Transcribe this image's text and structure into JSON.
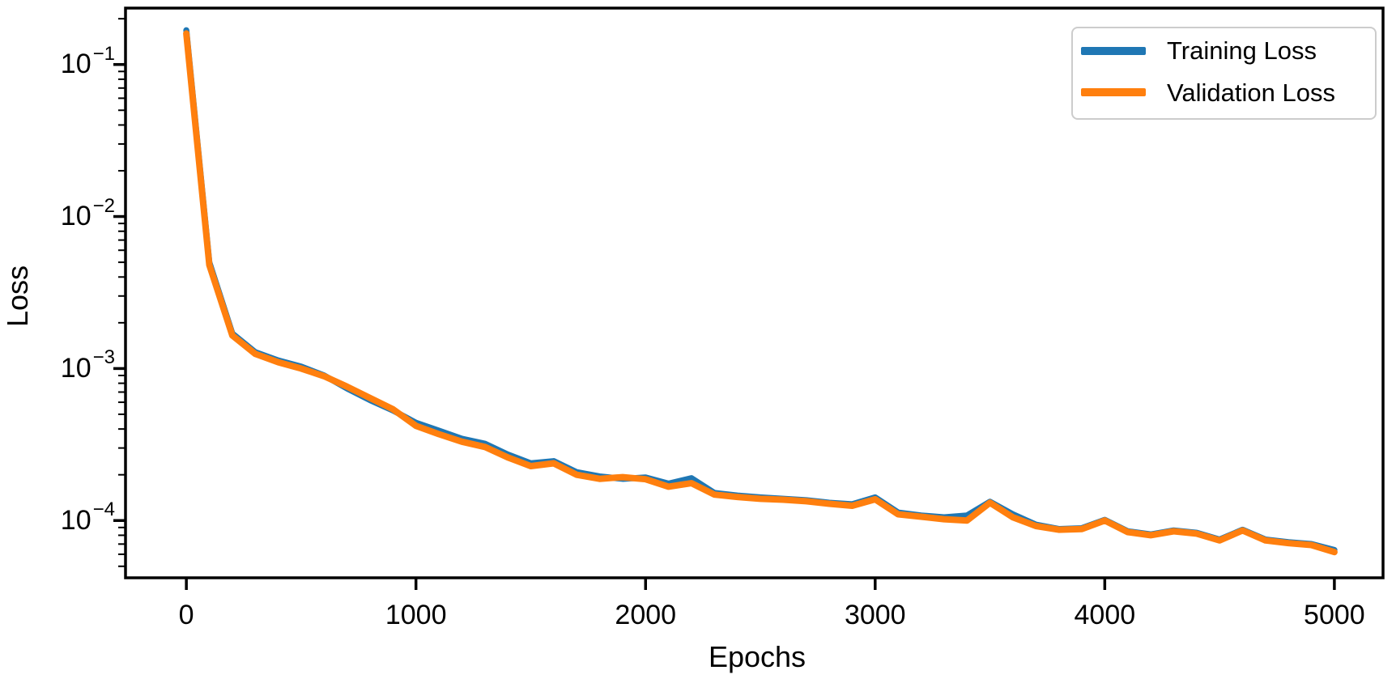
{
  "chart_data": {
    "type": "line",
    "title": "",
    "xlabel": "Epochs",
    "ylabel": "Loss",
    "yscale": "log",
    "grid": false,
    "legend_position": "upper right",
    "xlim": [
      -265,
      5212
    ],
    "ylim": [
      4.2e-05,
      0.235
    ],
    "x_ticks": [
      0,
      1000,
      2000,
      3000,
      4000,
      5000
    ],
    "x_tick_labels": [
      "0",
      "1000",
      "2000",
      "3000",
      "4000",
      "5000"
    ],
    "y_axis_base": "10",
    "y_ticks": [
      {
        "value": 0.1,
        "exponent_label": "−1"
      },
      {
        "value": 0.01,
        "exponent_label": "−2"
      },
      {
        "value": 0.001,
        "exponent_label": "−3"
      },
      {
        "value": 0.0001,
        "exponent_label": "−4"
      }
    ],
    "x": [
      0,
      100,
      200,
      300,
      400,
      500,
      600,
      700,
      800,
      900,
      1000,
      1100,
      1200,
      1300,
      1400,
      1500,
      1600,
      1700,
      1800,
      1900,
      2000,
      2100,
      2200,
      2300,
      2400,
      2500,
      2600,
      2700,
      2800,
      2900,
      3000,
      3100,
      3200,
      3300,
      3400,
      3500,
      3600,
      3700,
      3800,
      3900,
      4000,
      4100,
      4200,
      4300,
      4400,
      4500,
      4600,
      4700,
      4800,
      4900,
      5000
    ],
    "series": [
      {
        "name": "Training Loss",
        "color": "#1f77b4",
        "values": [
          0.168,
          0.005,
          0.0017,
          0.00128,
          0.00113,
          0.00103,
          0.0009,
          0.00074,
          0.00062,
          0.00053,
          0.00044,
          0.00039,
          0.000345,
          0.00032,
          0.000272,
          0.000238,
          0.000246,
          0.000208,
          0.000195,
          0.000188,
          0.000192,
          0.000175,
          0.00019,
          0.000152,
          0.000146,
          0.000142,
          0.000139,
          0.000136,
          0.000131,
          0.000128,
          0.000142,
          0.000113,
          0.000108,
          0.000105,
          0.000108,
          0.000133,
          0.00011,
          9.4e-05,
          8.8e-05,
          8.9e-05,
          0.000101,
          8.5e-05,
          8.1e-05,
          8.6e-05,
          8.3e-05,
          7.5e-05,
          8.7e-05,
          7.5e-05,
          7.2e-05,
          7e-05,
          6.4e-05
        ]
      },
      {
        "name": "Validation Loss",
        "color": "#ff7f0e",
        "values": [
          0.16,
          0.0048,
          0.00165,
          0.00125,
          0.0011,
          0.001,
          0.00089,
          0.00076,
          0.00064,
          0.00054,
          0.00042,
          0.00037,
          0.00033,
          0.000305,
          0.00026,
          0.000228,
          0.000238,
          0.0002,
          0.000188,
          0.000193,
          0.000187,
          0.000167,
          0.000176,
          0.000148,
          0.000143,
          0.000139,
          0.000137,
          0.000134,
          0.000129,
          0.000125,
          0.000138,
          0.00011,
          0.000106,
          0.000102,
          0.0001,
          0.000131,
          0.000105,
          9.2e-05,
          8.7e-05,
          8.8e-05,
          0.0001,
          8.4e-05,
          8e-05,
          8.5e-05,
          8.2e-05,
          7.4e-05,
          8.6e-05,
          7.4e-05,
          7.1e-05,
          6.9e-05,
          6.2e-05
        ]
      }
    ]
  },
  "colors": {
    "axis": "#000000",
    "legend_border": "#cccccc",
    "background": "#ffffff"
  }
}
